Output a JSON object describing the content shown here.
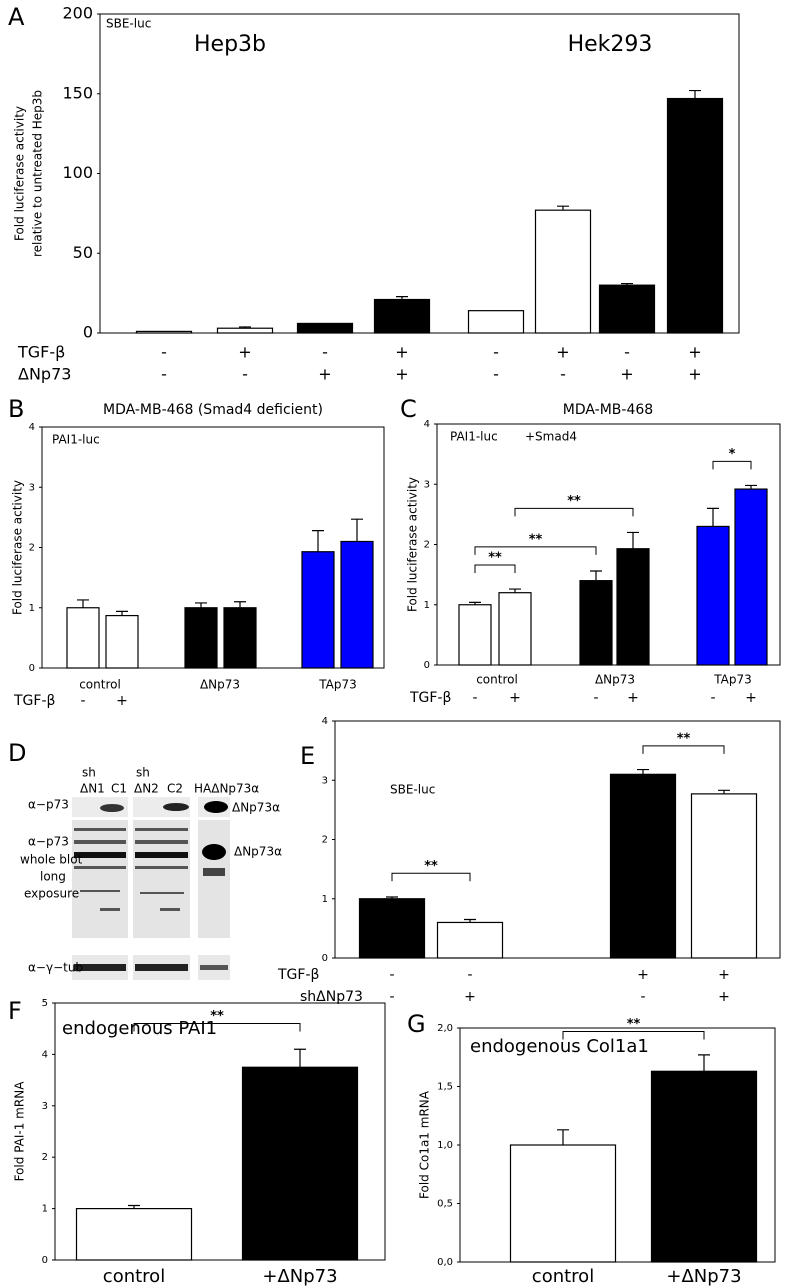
{
  "chart_data": [
    {
      "type": "bar",
      "letter": "A",
      "inner_label": "SBE-luc",
      "groups": [
        "Hep3b",
        "Hek293"
      ],
      "ylabel": [
        "Fold luciferase activity",
        "relative to untreated Hep3b"
      ],
      "ylim": [
        0,
        200
      ],
      "yticks": [
        0,
        50,
        100,
        150,
        200
      ],
      "values": [
        1,
        3,
        6,
        21,
        14,
        77,
        30,
        147
      ],
      "errors": [
        null,
        0.8,
        null,
        1.8,
        null,
        2.5,
        1,
        5
      ],
      "colors": [
        "#ffffff",
        "#ffffff",
        "#000000",
        "#000000",
        "#ffffff",
        "#ffffff",
        "#000000",
        "#000000"
      ],
      "conditions": [
        {
          "name": "TGF-β",
          "values": [
            "-",
            "+",
            "-",
            "+",
            "-",
            "+",
            "-",
            "+"
          ]
        },
        {
          "name": "ΔNp73",
          "values": [
            "-",
            "-",
            "+",
            "+",
            "-",
            "-",
            "+",
            "+"
          ]
        }
      ]
    },
    {
      "type": "bar",
      "letter": "B",
      "title": "MDA-MB-468 (Smad4 deficient)",
      "inner_label": "PAI1-luc",
      "ylabel": "Fold luciferase activity",
      "ylim": [
        0,
        4
      ],
      "yticks": [
        0,
        1,
        2,
        3,
        4
      ],
      "values": [
        1.0,
        0.87,
        1.0,
        1.0,
        1.93,
        2.1
      ],
      "errors": [
        0.13,
        0.07,
        0.08,
        0.1,
        0.35,
        0.37
      ],
      "colors": [
        "#ffffff",
        "#ffffff",
        "#000000",
        "#000000",
        "#0000ff",
        "#0000ff"
      ],
      "groups": [
        "control",
        "ΔNp73",
        "TAp73"
      ],
      "conditions": [
        {
          "name": "TGF-β",
          "values": [
            "-",
            "+",
            null,
            null,
            null,
            null
          ]
        }
      ]
    },
    {
      "type": "bar",
      "letter": "C",
      "title": "MDA-MB-468",
      "inner_label": "PAI1-luc",
      "extra_label": "+Smad4",
      "ylabel": "Fold luciferase activity",
      "ylim": [
        0,
        4
      ],
      "yticks": [
        0,
        1,
        2,
        3,
        4
      ],
      "values": [
        1.0,
        1.2,
        1.4,
        1.93,
        2.3,
        2.92
      ],
      "errors": [
        0.04,
        0.06,
        0.16,
        0.27,
        0.3,
        0.06
      ],
      "colors": [
        "#ffffff",
        "#ffffff",
        "#000000",
        "#000000",
        "#0000ff",
        "#0000ff"
      ],
      "groups": [
        "control",
        "ΔNp73",
        "TAp73"
      ],
      "conditions": [
        {
          "name": "TGF-β",
          "values": [
            "-",
            "+",
            "-",
            "+",
            "-",
            "+"
          ]
        }
      ],
      "significance": [
        {
          "label": "**",
          "bars": [
            0,
            1
          ]
        },
        {
          "label": "**",
          "bars": [
            0,
            2
          ]
        },
        {
          "label": "**",
          "bars": [
            1,
            3
          ]
        },
        {
          "label": "*",
          "bars": [
            4,
            5
          ]
        }
      ]
    },
    {
      "type": "bar",
      "letter": "E",
      "inner_label": "SBE-luc",
      "ylim": [
        0,
        4
      ],
      "yticks": [
        0,
        1,
        2,
        3,
        4
      ],
      "values": [
        1.0,
        0.6,
        3.1,
        2.77
      ],
      "errors": [
        0.03,
        0.05,
        0.08,
        0.06
      ],
      "colors": [
        "#000000",
        "#ffffff",
        "#000000",
        "#ffffff"
      ],
      "conditions": [
        {
          "name": "TGF-β",
          "values": [
            "-",
            "-",
            "+",
            "+"
          ]
        },
        {
          "name": "shΔNp73",
          "values": [
            "-",
            "+",
            "-",
            "+"
          ]
        }
      ],
      "significance": [
        {
          "label": "**",
          "bars": [
            0,
            1
          ]
        },
        {
          "label": "**",
          "bars": [
            2,
            3
          ]
        }
      ]
    },
    {
      "type": "bar",
      "letter": "F",
      "inner_label": "endogenous PAI1",
      "ylabel": "Fold PAI-1 mRNA",
      "ylim": [
        0,
        5
      ],
      "yticks": [
        0,
        1,
        2,
        3,
        4,
        5
      ],
      "categories": [
        "control",
        "+ΔNp73"
      ],
      "values": [
        1.0,
        3.75
      ],
      "errors": [
        0.06,
        0.35
      ],
      "colors": [
        "#ffffff",
        "#000000"
      ],
      "significance": [
        {
          "label": "**",
          "bars": [
            0,
            1
          ]
        }
      ]
    },
    {
      "type": "bar",
      "letter": "G",
      "inner_label": "endogenous Col1a1",
      "ylabel": "Fold Co1a1 mRNA",
      "ylim": [
        0,
        2
      ],
      "yticks": [
        {
          "value": 0,
          "label": "0,0"
        },
        {
          "value": 0.5,
          "label": "0,5"
        },
        {
          "value": 1,
          "label": "1,0"
        },
        {
          "value": 1.5,
          "label": "1,5"
        },
        {
          "value": 2,
          "label": "2,0"
        }
      ],
      "categories": [
        "control",
        "+ΔNp73"
      ],
      "values": [
        1.0,
        1.63
      ],
      "errors": [
        0.13,
        0.14
      ],
      "colors": [
        "#ffffff",
        "#000000"
      ],
      "significance": [
        {
          "label": "**",
          "bars": [
            0,
            1
          ]
        }
      ]
    }
  ],
  "blot": {
    "letter": "D",
    "sh": [
      "sh",
      "sh"
    ],
    "lanes": [
      "ΔN1",
      "C1",
      "ΔN2",
      "C2",
      "HAΔNp73α"
    ],
    "row_labels": [
      "α−p73",
      "α−p73",
      "whole blot",
      "long",
      "exposure",
      "α−γ−tub"
    ],
    "band_labels": [
      "ΔNp73α",
      "ΔNp73α"
    ]
  }
}
